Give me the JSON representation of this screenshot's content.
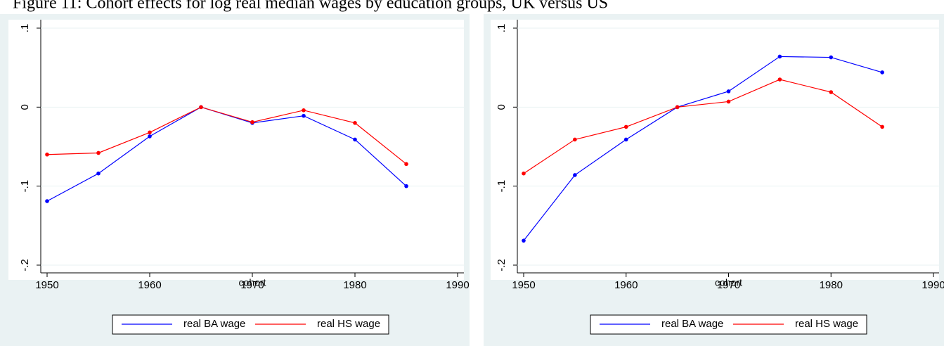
{
  "title": "Figure 11: Cohort effects for log real median wages by education groups, UK versus US",
  "chart_data": [
    {
      "type": "line",
      "x_label": "cohort",
      "x": [
        1950,
        1955,
        1960,
        1965,
        1970,
        1975,
        1980,
        1985
      ],
      "series": [
        {
          "name": "real BA wage",
          "color": "#0000ff",
          "values": [
            -0.119,
            -0.084,
            -0.037,
            0,
            -0.02,
            -0.011,
            -0.041,
            -0.1
          ]
        },
        {
          "name": "real HS wage",
          "color": "#ff0000",
          "values": [
            -0.06,
            -0.058,
            -0.032,
            0,
            -0.019,
            -0.004,
            -0.02,
            -0.072
          ]
        }
      ],
      "xlim": [
        1950,
        1990
      ],
      "xticks": [
        1950,
        1960,
        1970,
        1980,
        1990
      ],
      "ylim": [
        -0.2,
        0.1
      ],
      "yticks": [
        {
          "value": -0.2,
          "label": "-.2"
        },
        {
          "value": -0.1,
          "label": "-.1"
        },
        0,
        {
          "value": 0.1,
          "label": ".1"
        }
      ],
      "grid": true
    },
    {
      "type": "line",
      "x_label": "cohort",
      "x": [
        1950,
        1955,
        1960,
        1965,
        1970,
        1975,
        1980,
        1985
      ],
      "series": [
        {
          "name": "real BA wage",
          "color": "#0000ff",
          "values": [
            -0.169,
            -0.086,
            -0.041,
            0,
            0.02,
            0.064,
            0.063,
            0.044
          ]
        },
        {
          "name": "real HS wage",
          "color": "#ff0000",
          "values": [
            -0.084,
            -0.041,
            -0.025,
            0,
            0.007,
            0.035,
            0.019,
            -0.025
          ]
        }
      ],
      "xlim": [
        1950,
        1990
      ],
      "xticks": [
        1950,
        1960,
        1970,
        1980,
        1990
      ],
      "ylim": [
        -0.2,
        0.1
      ],
      "yticks": [
        {
          "value": -0.2,
          "label": "-.2"
        },
        {
          "value": -0.1,
          "label": "-.1"
        },
        0,
        {
          "value": 0.1,
          "label": ".1"
        }
      ],
      "grid": true
    }
  ]
}
